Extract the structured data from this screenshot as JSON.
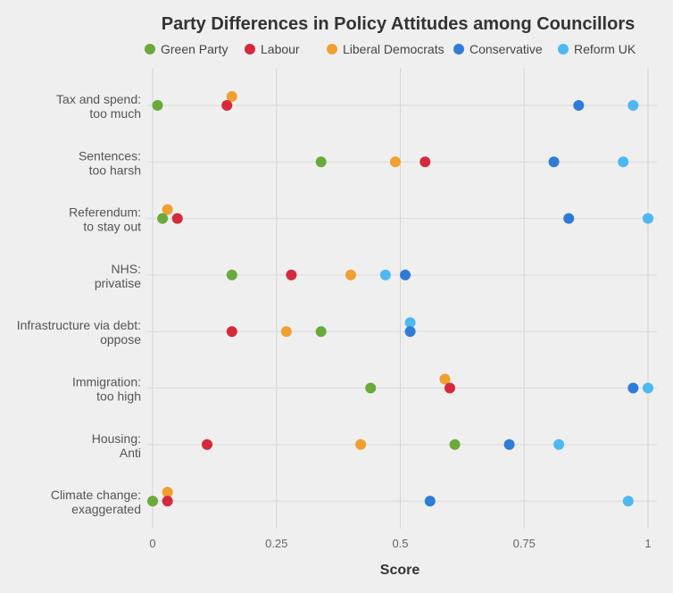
{
  "chart_data": {
    "type": "scatter",
    "title": "Party Differences in Policy Attitudes among Councillors",
    "xlabel": "Score",
    "ylabel": "",
    "xlim": [
      0,
      1
    ],
    "xticks": [
      "0",
      "0.25",
      "0.5",
      "0.75",
      "1"
    ],
    "xtick_values": [
      0,
      0.25,
      0.5,
      0.75,
      1
    ],
    "grid": true,
    "legend_position": "top",
    "categories": [
      [
        "Tax and spend:",
        "too much"
      ],
      [
        "Sentences:",
        "too harsh"
      ],
      [
        "Referendum:",
        "to stay out"
      ],
      [
        "NHS:",
        "privatise"
      ],
      [
        "Infrastructure via debt:",
        "oppose"
      ],
      [
        "Immigration:",
        "too high"
      ],
      [
        "Housing:",
        "Anti"
      ],
      [
        "Climate change:",
        "exaggerated"
      ]
    ],
    "series": [
      {
        "name": "Green Party",
        "color": "#6aaa3a",
        "values": [
          0.01,
          0.34,
          0.02,
          0.16,
          0.34,
          0.44,
          0.61,
          0.0
        ]
      },
      {
        "name": "Labour",
        "color": "#d42a3c",
        "values": [
          0.15,
          0.55,
          0.05,
          0.28,
          0.16,
          0.6,
          0.11,
          0.03
        ]
      },
      {
        "name": "Liberal Democrats",
        "color": "#f0a030",
        "values": [
          0.16,
          0.49,
          0.03,
          0.4,
          0.27,
          0.59,
          0.42,
          0.03
        ]
      },
      {
        "name": "Conservative",
        "color": "#2f7bd8",
        "values": [
          0.86,
          0.81,
          0.84,
          0.51,
          0.52,
          0.97,
          0.72,
          0.56
        ]
      },
      {
        "name": "Reform UK",
        "color": "#4db8f2",
        "values": [
          0.97,
          0.95,
          1.0,
          0.47,
          0.52,
          1.0,
          0.82,
          0.96
        ]
      }
    ]
  }
}
